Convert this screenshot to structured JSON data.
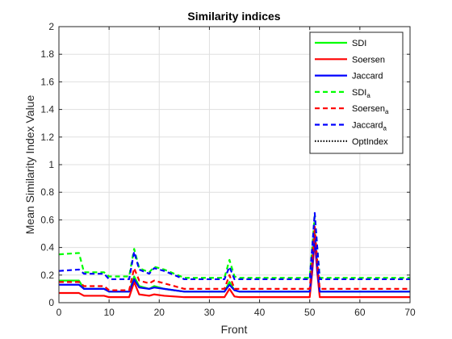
{
  "chart_data": {
    "type": "line",
    "title": "Similarity indices",
    "xlabel": "Front",
    "ylabel": "Mean Similarity Index Value",
    "xlim": [
      0,
      70
    ],
    "ylim": [
      0,
      2
    ],
    "xticks": [
      0,
      10,
      20,
      30,
      40,
      50,
      60,
      70
    ],
    "yticks": [
      0,
      0.2,
      0.4,
      0.6,
      0.8,
      1,
      1.2,
      1.4,
      1.6,
      1.8,
      2
    ],
    "xtick_labels": [
      "0",
      "10",
      "20",
      "30",
      "40",
      "50",
      "60",
      "70"
    ],
    "ytick_labels": [
      "0",
      "0.2",
      "0.4",
      "0.6",
      "0.8",
      "1",
      "1.2",
      "1.4",
      "1.6",
      "1.8",
      "2"
    ],
    "grid": true,
    "legend_position": "top-right",
    "series": [
      {
        "name": "SDI",
        "sub": "",
        "color": "#00ff00",
        "style": "solid",
        "points": [
          [
            0,
            0.16
          ],
          [
            4,
            0.16
          ],
          [
            5,
            0.1
          ],
          [
            9,
            0.1
          ],
          [
            10,
            0.08
          ],
          [
            14,
            0.08
          ],
          [
            15,
            0.19
          ],
          [
            16,
            0.12
          ],
          [
            18,
            0.1
          ],
          [
            19,
            0.12
          ],
          [
            21,
            0.1
          ],
          [
            23,
            0.09
          ],
          [
            25,
            0.08
          ],
          [
            33,
            0.08
          ],
          [
            34,
            0.15
          ],
          [
            35,
            0.09
          ],
          [
            36,
            0.08
          ],
          [
            50,
            0.08
          ],
          [
            50.5,
            0.25
          ],
          [
            51,
            0.51
          ],
          [
            51.5,
            0.25
          ],
          [
            52,
            0.08
          ],
          [
            70,
            0.08
          ]
        ]
      },
      {
        "name": "Soersen",
        "sub": "",
        "color": "#ff0000",
        "style": "solid",
        "points": [
          [
            0,
            0.07
          ],
          [
            4,
            0.07
          ],
          [
            5,
            0.05
          ],
          [
            9,
            0.05
          ],
          [
            10,
            0.04
          ],
          [
            14,
            0.04
          ],
          [
            15,
            0.15
          ],
          [
            16,
            0.06
          ],
          [
            18,
            0.05
          ],
          [
            19,
            0.06
          ],
          [
            21,
            0.05
          ],
          [
            23,
            0.045
          ],
          [
            25,
            0.04
          ],
          [
            33,
            0.04
          ],
          [
            34,
            0.1
          ],
          [
            35,
            0.045
          ],
          [
            36,
            0.04
          ],
          [
            50,
            0.04
          ],
          [
            50.5,
            0.22
          ],
          [
            51,
            0.45
          ],
          [
            51.5,
            0.22
          ],
          [
            52,
            0.04
          ],
          [
            70,
            0.04
          ]
        ]
      },
      {
        "name": "Jaccard",
        "sub": "",
        "color": "#0000ff",
        "style": "solid",
        "points": [
          [
            0,
            0.13
          ],
          [
            4,
            0.13
          ],
          [
            5,
            0.1
          ],
          [
            9,
            0.1
          ],
          [
            10,
            0.08
          ],
          [
            14,
            0.08
          ],
          [
            15,
            0.17
          ],
          [
            16,
            0.11
          ],
          [
            18,
            0.1
          ],
          [
            19,
            0.11
          ],
          [
            21,
            0.1
          ],
          [
            23,
            0.09
          ],
          [
            25,
            0.08
          ],
          [
            33,
            0.08
          ],
          [
            34,
            0.13
          ],
          [
            35,
            0.09
          ],
          [
            36,
            0.08
          ],
          [
            50,
            0.08
          ],
          [
            50.5,
            0.25
          ],
          [
            51,
            0.49
          ],
          [
            51.5,
            0.25
          ],
          [
            52,
            0.08
          ],
          [
            70,
            0.08
          ]
        ]
      },
      {
        "name": "SDI",
        "sub": "a",
        "color": "#00ff00",
        "style": "dashed",
        "points": [
          [
            0,
            0.35
          ],
          [
            4,
            0.36
          ],
          [
            5,
            0.22
          ],
          [
            9,
            0.22
          ],
          [
            10,
            0.19
          ],
          [
            14,
            0.19
          ],
          [
            15,
            0.39
          ],
          [
            16,
            0.25
          ],
          [
            18,
            0.22
          ],
          [
            19,
            0.26
          ],
          [
            21,
            0.24
          ],
          [
            23,
            0.21
          ],
          [
            25,
            0.18
          ],
          [
            33,
            0.18
          ],
          [
            34,
            0.31
          ],
          [
            35,
            0.19
          ],
          [
            36,
            0.18
          ],
          [
            50,
            0.18
          ],
          [
            50.5,
            0.4
          ],
          [
            51,
            0.63
          ],
          [
            51.5,
            0.4
          ],
          [
            52,
            0.18
          ],
          [
            70,
            0.18
          ]
        ]
      },
      {
        "name": "Soersen",
        "sub": "a",
        "color": "#ff0000",
        "style": "dashed",
        "points": [
          [
            0,
            0.15
          ],
          [
            4,
            0.15
          ],
          [
            5,
            0.12
          ],
          [
            9,
            0.12
          ],
          [
            10,
            0.09
          ],
          [
            14,
            0.09
          ],
          [
            15,
            0.25
          ],
          [
            16,
            0.16
          ],
          [
            18,
            0.14
          ],
          [
            19,
            0.16
          ],
          [
            21,
            0.14
          ],
          [
            23,
            0.12
          ],
          [
            25,
            0.1
          ],
          [
            33,
            0.1
          ],
          [
            34,
            0.2
          ],
          [
            35,
            0.1
          ],
          [
            36,
            0.1
          ],
          [
            50,
            0.1
          ],
          [
            50.5,
            0.3
          ],
          [
            51,
            0.55
          ],
          [
            51.5,
            0.3
          ],
          [
            52,
            0.1
          ],
          [
            70,
            0.1
          ]
        ]
      },
      {
        "name": "Jaccard",
        "sub": "a",
        "color": "#0000ff",
        "style": "dashed",
        "points": [
          [
            0,
            0.23
          ],
          [
            4,
            0.24
          ],
          [
            5,
            0.21
          ],
          [
            9,
            0.21
          ],
          [
            10,
            0.17
          ],
          [
            14,
            0.17
          ],
          [
            15,
            0.37
          ],
          [
            16,
            0.24
          ],
          [
            18,
            0.21
          ],
          [
            19,
            0.25
          ],
          [
            21,
            0.23
          ],
          [
            23,
            0.2
          ],
          [
            25,
            0.17
          ],
          [
            33,
            0.17
          ],
          [
            34,
            0.26
          ],
          [
            35,
            0.17
          ],
          [
            36,
            0.17
          ],
          [
            50,
            0.17
          ],
          [
            50.5,
            0.4
          ],
          [
            51,
            0.65
          ],
          [
            51.5,
            0.4
          ],
          [
            52,
            0.17
          ],
          [
            70,
            0.17
          ]
        ]
      },
      {
        "name": "OptIndex",
        "sub": "",
        "color": "#000000",
        "style": "dotted",
        "points": []
      }
    ]
  }
}
